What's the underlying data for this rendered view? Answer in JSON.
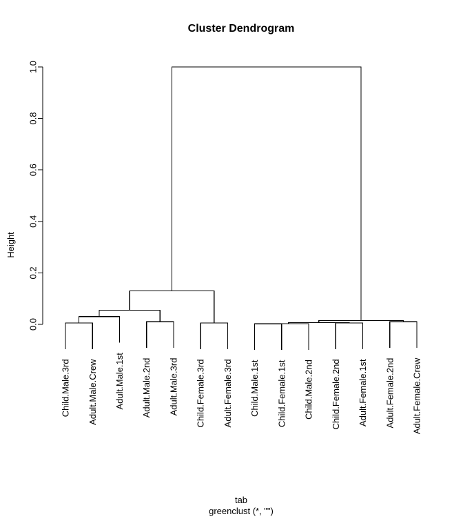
{
  "chart_data": {
    "type": "dendrogram",
    "title": "Cluster Dendrogram",
    "ylabel": "Height",
    "xlabel_lines": [
      "tab",
      "greenclust (*, \"\")"
    ],
    "yticks": [
      0.0,
      0.2,
      0.4,
      0.6,
      0.8,
      1.0
    ],
    "ylim": [
      0.0,
      1.0
    ],
    "hang": 0.1,
    "colors": {
      "line": "#000000",
      "text": "#000000",
      "background": "#ffffff"
    },
    "leaf_order": [
      "Child.Male.3rd",
      "Adult.Male.Crew",
      "Adult.Male.1st",
      "Adult.Male.2nd",
      "Adult.Male.3rd",
      "Child.Female.3rd",
      "Adult.Female.3rd",
      "Child.Male.1st",
      "Child.Female.1st",
      "Child.Male.2nd",
      "Child.Female.2nd",
      "Adult.Female.1st",
      "Adult.Female.2nd",
      "Adult.Female.Crew"
    ],
    "tree": {
      "h": 1.0,
      "children": [
        {
          "h": 0.13,
          "children": [
            {
              "h": 0.055,
              "children": [
                {
                  "h": 0.03,
                  "children": [
                    {
                      "h": 0.005,
                      "children": [
                        {
                          "leaf": "Child.Male.3rd"
                        },
                        {
                          "leaf": "Adult.Male.Crew"
                        }
                      ]
                    },
                    {
                      "leaf": "Adult.Male.1st"
                    }
                  ]
                },
                {
                  "h": 0.01,
                  "children": [
                    {
                      "leaf": "Adult.Male.2nd"
                    },
                    {
                      "leaf": "Adult.Male.3rd"
                    }
                  ]
                }
              ]
            },
            {
              "h": 0.005,
              "children": [
                {
                  "leaf": "Child.Female.3rd"
                },
                {
                  "leaf": "Adult.Female.3rd"
                }
              ]
            }
          ]
        },
        {
          "h": 0.015,
          "children": [
            {
              "h": 0.007,
              "children": [
                {
                  "h": 0.003,
                  "children": [
                    {
                      "h": 0.002,
                      "children": [
                        {
                          "leaf": "Child.Male.1st"
                        },
                        {
                          "leaf": "Child.Female.1st"
                        }
                      ]
                    },
                    {
                      "leaf": "Child.Male.2nd"
                    }
                  ]
                },
                {
                  "h": 0.005,
                  "children": [
                    {
                      "leaf": "Child.Female.2nd"
                    },
                    {
                      "leaf": "Adult.Female.1st"
                    }
                  ]
                }
              ]
            },
            {
              "h": 0.01,
              "children": [
                {
                  "leaf": "Adult.Female.2nd"
                },
                {
                  "leaf": "Adult.Female.Crew"
                }
              ]
            }
          ]
        }
      ]
    }
  }
}
